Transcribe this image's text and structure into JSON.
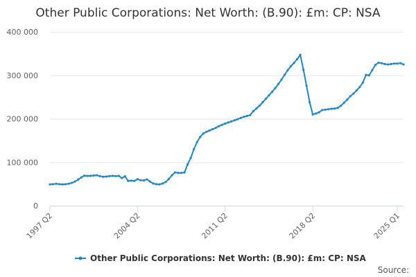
{
  "chart_data": {
    "type": "line",
    "title": "Other Public Corporations: Net Worth: (B.90): £m: CP: NSA",
    "xlabel": "",
    "ylabel": "",
    "x_tick_labels": [
      "1997 Q2",
      "2004 Q2",
      "2011 Q2",
      "2018 Q2",
      "2025 Q1"
    ],
    "y_tick_labels": [
      "0",
      "100 000",
      "200 000",
      "300 000",
      "400 000"
    ],
    "ylim": [
      0,
      400000
    ],
    "grid": "horizontal",
    "legend_position": "bottom",
    "series_color": "#1f87c8",
    "source_label": "Source:",
    "series": [
      {
        "name": "Other Public Corporations: Net Worth: (B.90): £m: CP: NSA",
        "start": "1997 Q2",
        "values": [
          49000,
          49500,
          50500,
          49500,
          49000,
          49500,
          50500,
          52500,
          55500,
          60000,
          65000,
          69000,
          68500,
          68500,
          69500,
          70000,
          68000,
          66500,
          67000,
          68000,
          68500,
          68000,
          68500,
          63500,
          67500,
          57000,
          57500,
          57000,
          61000,
          58500,
          58000,
          60500,
          55500,
          51000,
          49500,
          49000,
          51000,
          54500,
          61500,
          70000,
          76500,
          75500,
          75500,
          76500,
          95000,
          110000,
          130000,
          146000,
          158000,
          166000,
          170000,
          173000,
          176000,
          179000,
          183000,
          186000,
          189000,
          191500,
          194000,
          196500,
          199000,
          202000,
          204500,
          206500,
          208500,
          217500,
          224000,
          230000,
          238000,
          246000,
          254000,
          262000,
          270500,
          280000,
          290000,
          301000,
          312000,
          321000,
          328500,
          337000,
          347000,
          313000,
          276000,
          238000,
          210000,
          212000,
          215000,
          220000,
          221000,
          222000,
          223000,
          223500,
          225000,
          230000,
          237000,
          244000,
          252000,
          258000,
          265000,
          273000,
          283000,
          301000,
          300000,
          312000,
          324000,
          329000,
          328000,
          326000,
          325000,
          326000,
          327000,
          327000,
          328000,
          325000
        ]
      }
    ]
  }
}
